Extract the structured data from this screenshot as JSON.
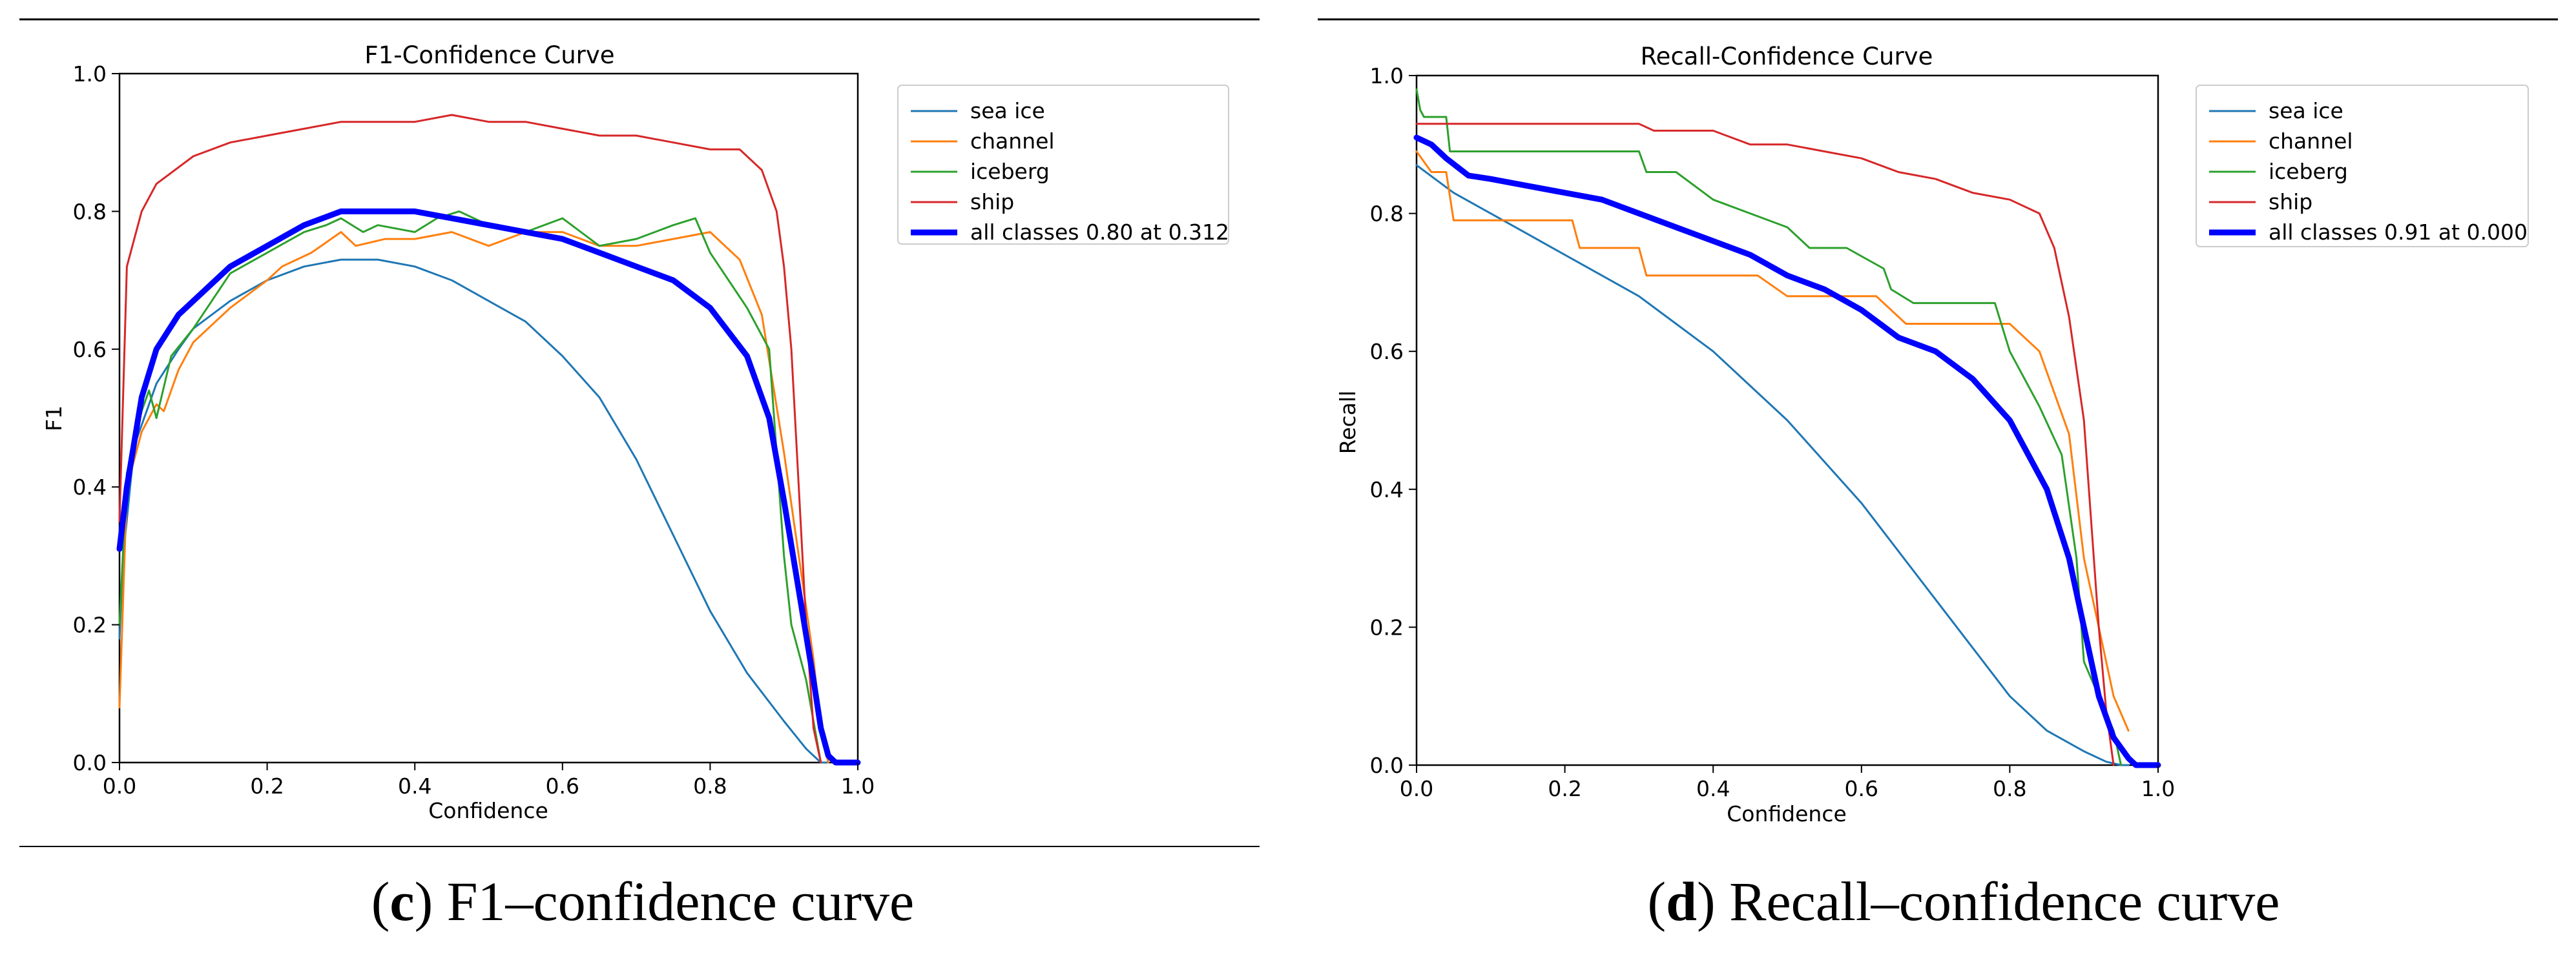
{
  "chart_data": [
    {
      "type": "line",
      "title": "F1-Confidence Curve",
      "xlabel": "Confidence",
      "ylabel": "F1",
      "xlim": [
        0,
        1
      ],
      "ylim": [
        0,
        1
      ],
      "xticks": [
        "0.0",
        "0.2",
        "0.4",
        "0.6",
        "0.8",
        "1.0"
      ],
      "yticks": [
        "0.0",
        "0.2",
        "0.4",
        "0.6",
        "0.8",
        "1.0"
      ],
      "legend_position": "outside-right-top",
      "series": [
        {
          "name": "sea ice",
          "color": "#1f77b4",
          "emphasis": false,
          "x": [
            0,
            0.005,
            0.02,
            0.05,
            0.08,
            0.1,
            0.15,
            0.2,
            0.25,
            0.3,
            0.35,
            0.4,
            0.45,
            0.5,
            0.55,
            0.6,
            0.65,
            0.7,
            0.75,
            0.8,
            0.85,
            0.9,
            0.93,
            0.95,
            0.96
          ],
          "y": [
            0.18,
            0.3,
            0.46,
            0.55,
            0.6,
            0.63,
            0.67,
            0.7,
            0.72,
            0.73,
            0.73,
            0.72,
            0.7,
            0.67,
            0.64,
            0.59,
            0.53,
            0.44,
            0.33,
            0.22,
            0.13,
            0.06,
            0.02,
            0.0,
            0.0
          ]
        },
        {
          "name": "channel",
          "color": "#ff7f0e",
          "emphasis": false,
          "x": [
            0,
            0.01,
            0.03,
            0.05,
            0.06,
            0.08,
            0.1,
            0.15,
            0.2,
            0.22,
            0.26,
            0.3,
            0.32,
            0.36,
            0.4,
            0.45,
            0.5,
            0.55,
            0.6,
            0.65,
            0.7,
            0.75,
            0.8,
            0.84,
            0.87,
            0.9,
            0.92,
            0.94,
            0.95,
            0.96
          ],
          "y": [
            0.08,
            0.4,
            0.48,
            0.52,
            0.51,
            0.57,
            0.61,
            0.66,
            0.7,
            0.72,
            0.74,
            0.77,
            0.75,
            0.76,
            0.76,
            0.77,
            0.75,
            0.77,
            0.77,
            0.75,
            0.75,
            0.76,
            0.77,
            0.73,
            0.65,
            0.45,
            0.3,
            0.15,
            0.05,
            0.0
          ]
        },
        {
          "name": "iceberg",
          "color": "#2ca02c",
          "emphasis": false,
          "x": [
            0,
            0.01,
            0.03,
            0.04,
            0.05,
            0.07,
            0.1,
            0.15,
            0.2,
            0.25,
            0.28,
            0.3,
            0.33,
            0.35,
            0.4,
            0.43,
            0.46,
            0.5,
            0.55,
            0.6,
            0.65,
            0.7,
            0.75,
            0.78,
            0.8,
            0.85,
            0.88,
            0.9,
            0.91,
            0.93,
            0.95
          ],
          "y": [
            0.2,
            0.42,
            0.51,
            0.54,
            0.5,
            0.59,
            0.63,
            0.71,
            0.74,
            0.77,
            0.78,
            0.79,
            0.77,
            0.78,
            0.77,
            0.79,
            0.8,
            0.78,
            0.77,
            0.79,
            0.75,
            0.76,
            0.78,
            0.79,
            0.74,
            0.66,
            0.6,
            0.3,
            0.2,
            0.12,
            0.0
          ]
        },
        {
          "name": "ship",
          "color": "#d62728",
          "emphasis": false,
          "x": [
            0,
            0.01,
            0.03,
            0.05,
            0.1,
            0.15,
            0.2,
            0.25,
            0.3,
            0.35,
            0.4,
            0.45,
            0.5,
            0.55,
            0.6,
            0.65,
            0.7,
            0.75,
            0.8,
            0.84,
            0.87,
            0.89,
            0.9,
            0.91,
            0.92,
            0.93,
            0.94,
            0.95
          ],
          "y": [
            0.35,
            0.72,
            0.8,
            0.84,
            0.88,
            0.9,
            0.91,
            0.92,
            0.93,
            0.93,
            0.93,
            0.94,
            0.93,
            0.93,
            0.92,
            0.91,
            0.91,
            0.9,
            0.89,
            0.89,
            0.86,
            0.8,
            0.72,
            0.6,
            0.4,
            0.2,
            0.05,
            0.0
          ]
        },
        {
          "name": "all classes 0.80 at 0.312",
          "color": "#0000ff",
          "emphasis": true,
          "x": [
            0,
            0.01,
            0.03,
            0.05,
            0.08,
            0.1,
            0.15,
            0.2,
            0.25,
            0.3,
            0.312,
            0.35,
            0.4,
            0.45,
            0.5,
            0.55,
            0.6,
            0.65,
            0.7,
            0.75,
            0.8,
            0.85,
            0.88,
            0.9,
            0.92,
            0.94,
            0.95,
            0.96,
            0.97,
            1.0
          ],
          "y": [
            0.31,
            0.4,
            0.53,
            0.6,
            0.65,
            0.67,
            0.72,
            0.75,
            0.78,
            0.8,
            0.8,
            0.8,
            0.8,
            0.79,
            0.78,
            0.77,
            0.76,
            0.74,
            0.72,
            0.7,
            0.66,
            0.59,
            0.5,
            0.38,
            0.25,
            0.12,
            0.05,
            0.01,
            0.0,
            0.0
          ]
        }
      ],
      "caption": {
        "letter": "c",
        "text": ") F1–confidence curve"
      }
    },
    {
      "type": "line",
      "title": "Recall-Confidence Curve",
      "xlabel": "Confidence",
      "ylabel": "Recall",
      "xlim": [
        0,
        1
      ],
      "ylim": [
        0,
        1
      ],
      "xticks": [
        "0.0",
        "0.2",
        "0.4",
        "0.6",
        "0.8",
        "1.0"
      ],
      "yticks": [
        "0.0",
        "0.2",
        "0.4",
        "0.6",
        "0.8",
        "1.0"
      ],
      "legend_position": "outside-right-top",
      "series": [
        {
          "name": "sea ice",
          "color": "#1f77b4",
          "emphasis": false,
          "x": [
            0,
            0.05,
            0.1,
            0.15,
            0.2,
            0.25,
            0.3,
            0.35,
            0.4,
            0.45,
            0.5,
            0.55,
            0.6,
            0.65,
            0.7,
            0.75,
            0.8,
            0.85,
            0.9,
            0.93,
            0.95,
            0.96
          ],
          "y": [
            0.87,
            0.83,
            0.8,
            0.77,
            0.74,
            0.71,
            0.68,
            0.64,
            0.6,
            0.55,
            0.5,
            0.44,
            0.38,
            0.31,
            0.24,
            0.17,
            0.1,
            0.05,
            0.02,
            0.005,
            0.0,
            0.0
          ]
        },
        {
          "name": "channel",
          "color": "#ff7f0e",
          "emphasis": false,
          "x": [
            0,
            0.02,
            0.04,
            0.05,
            0.21,
            0.22,
            0.3,
            0.31,
            0.46,
            0.5,
            0.62,
            0.66,
            0.8,
            0.84,
            0.88,
            0.9,
            0.92,
            0.94,
            0.96
          ],
          "y": [
            0.89,
            0.86,
            0.86,
            0.79,
            0.79,
            0.75,
            0.75,
            0.71,
            0.71,
            0.68,
            0.68,
            0.64,
            0.64,
            0.6,
            0.48,
            0.3,
            0.2,
            0.1,
            0.05
          ]
        },
        {
          "name": "iceberg",
          "color": "#2ca02c",
          "emphasis": false,
          "x": [
            0,
            0.005,
            0.01,
            0.04,
            0.045,
            0.3,
            0.31,
            0.35,
            0.4,
            0.45,
            0.5,
            0.53,
            0.58,
            0.63,
            0.64,
            0.67,
            0.78,
            0.8,
            0.84,
            0.87,
            0.89,
            0.9,
            0.92,
            0.94,
            0.95
          ],
          "y": [
            0.98,
            0.95,
            0.94,
            0.94,
            0.89,
            0.89,
            0.86,
            0.86,
            0.82,
            0.8,
            0.78,
            0.75,
            0.75,
            0.72,
            0.69,
            0.67,
            0.67,
            0.6,
            0.52,
            0.45,
            0.3,
            0.15,
            0.1,
            0.05,
            0.0
          ]
        },
        {
          "name": "ship",
          "color": "#d62728",
          "emphasis": false,
          "x": [
            0,
            0.1,
            0.2,
            0.3,
            0.32,
            0.4,
            0.45,
            0.5,
            0.55,
            0.6,
            0.65,
            0.7,
            0.75,
            0.8,
            0.84,
            0.86,
            0.88,
            0.9,
            0.91,
            0.92,
            0.93,
            0.94
          ],
          "y": [
            0.93,
            0.93,
            0.93,
            0.93,
            0.92,
            0.92,
            0.9,
            0.9,
            0.89,
            0.88,
            0.86,
            0.85,
            0.83,
            0.82,
            0.8,
            0.75,
            0.65,
            0.5,
            0.35,
            0.2,
            0.08,
            0.0
          ]
        },
        {
          "name": "all classes 0.91 at 0.000",
          "color": "#0000ff",
          "emphasis": true,
          "x": [
            0,
            0.02,
            0.04,
            0.07,
            0.1,
            0.15,
            0.2,
            0.25,
            0.3,
            0.35,
            0.4,
            0.45,
            0.5,
            0.55,
            0.6,
            0.65,
            0.7,
            0.75,
            0.8,
            0.85,
            0.88,
            0.9,
            0.92,
            0.94,
            0.96,
            0.97,
            1.0
          ],
          "y": [
            0.91,
            0.9,
            0.88,
            0.855,
            0.85,
            0.84,
            0.83,
            0.82,
            0.8,
            0.78,
            0.76,
            0.74,
            0.71,
            0.69,
            0.66,
            0.62,
            0.6,
            0.56,
            0.5,
            0.4,
            0.3,
            0.2,
            0.1,
            0.04,
            0.01,
            0.0,
            0.0
          ]
        }
      ],
      "caption": {
        "letter": "d",
        "text": ") Recall–confidence curve"
      }
    }
  ]
}
